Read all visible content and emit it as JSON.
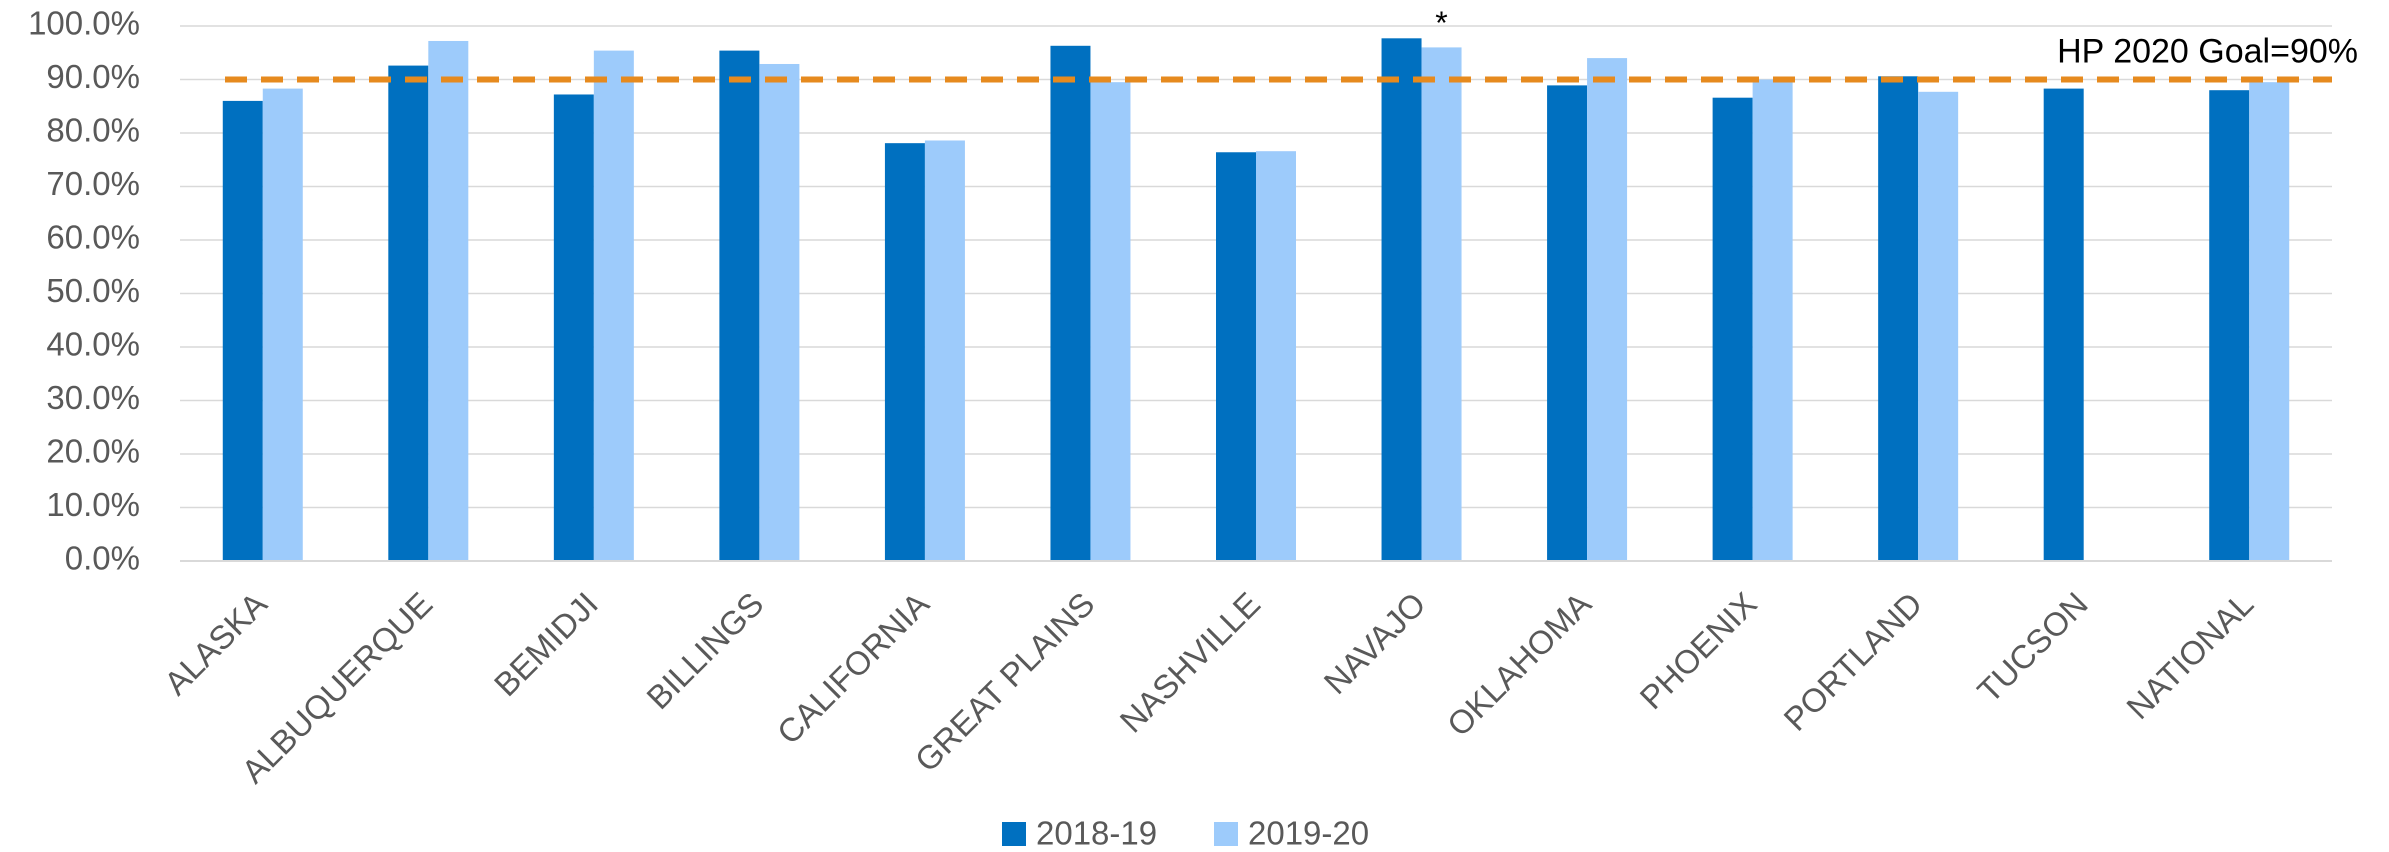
{
  "chart_data": {
    "type": "bar",
    "categories": [
      "ALASKA",
      "ALBUQUERQUE",
      "BEMIDJI",
      "BILLINGS",
      "CALIFORNIA",
      "GREAT PLAINS",
      "NASHVILLE",
      "NAVAJO",
      "OKLAHOMA",
      "PHOENIX",
      "PORTLAND",
      "TUCSON",
      "NATIONAL"
    ],
    "series": [
      {
        "name": "2018-19",
        "color": "#0070c0",
        "values": [
          86.0,
          92.6,
          87.2,
          95.4,
          78.1,
          96.3,
          76.4,
          97.7,
          88.9,
          86.6,
          90.6,
          88.3,
          88.0
        ]
      },
      {
        "name": "2019-20",
        "color": "#9dcbfb",
        "values": [
          88.3,
          97.2,
          95.4,
          92.9,
          78.6,
          89.5,
          76.6,
          96.0,
          94.0,
          90.0,
          87.7,
          null,
          89.5
        ]
      }
    ],
    "ylim": [
      0,
      100
    ],
    "yticks": [
      {
        "value": 0,
        "label": "0.0%"
      },
      {
        "value": 10,
        "label": "10.0%"
      },
      {
        "value": 20,
        "label": "20.0%"
      },
      {
        "value": 30,
        "label": "30.0%"
      },
      {
        "value": 40,
        "label": "40.0%"
      },
      {
        "value": 50,
        "label": "50.0%"
      },
      {
        "value": 60,
        "label": "60.0%"
      },
      {
        "value": 70,
        "label": "70.0%"
      },
      {
        "value": 80,
        "label": "80.0%"
      },
      {
        "value": 90,
        "label": "90.0%"
      },
      {
        "value": 100,
        "label": "100.0%"
      }
    ],
    "grid": true,
    "goal": {
      "value": 90,
      "label": "HP 2020 Goal=90%",
      "color": "#e68a1e"
    },
    "annotations": [
      {
        "text": "*",
        "category": 7,
        "series": 1
      }
    ],
    "legend": "bottom"
  }
}
